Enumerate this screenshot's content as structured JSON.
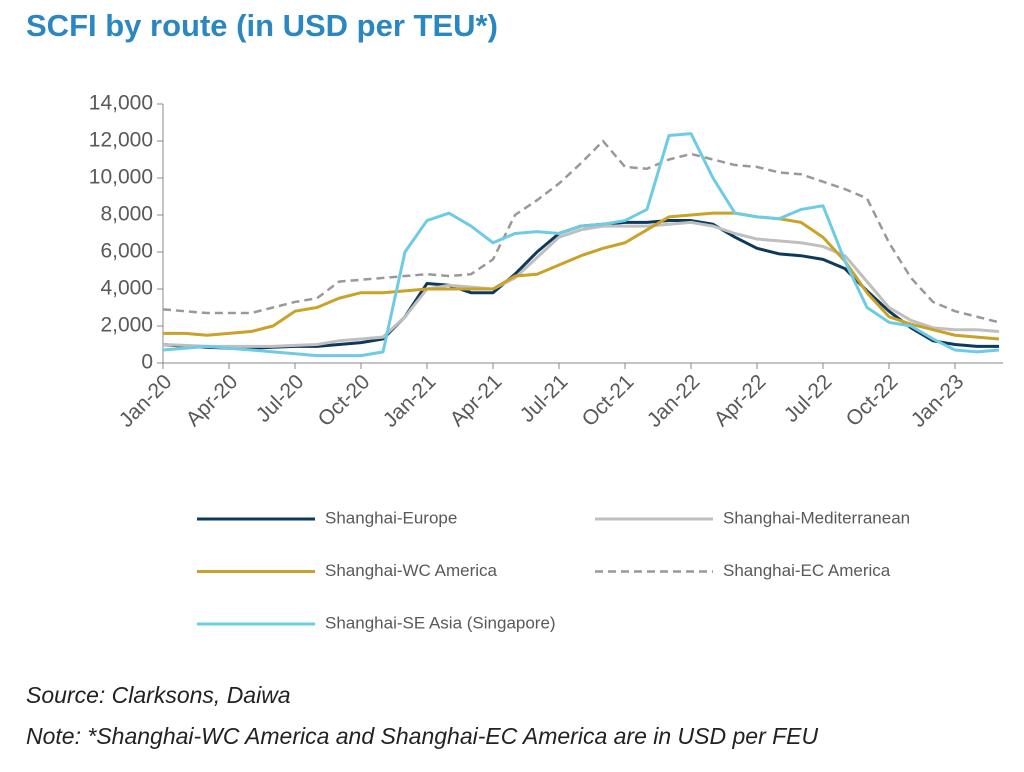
{
  "chart_data": {
    "type": "line",
    "title": "SCFI by route (in USD per TEU*)",
    "source": "Source: Clarksons, Daiwa",
    "note": "Note: *Shanghai-WC America and Shanghai-EC America are in USD per FEU",
    "categories": [
      "Jan-20",
      null,
      null,
      "Apr-20",
      null,
      null,
      "Jul-20",
      null,
      null,
      "Oct-20",
      null,
      null,
      "Jan-21",
      null,
      null,
      "Apr-21",
      null,
      null,
      "Jul-21",
      null,
      null,
      "Oct-21",
      null,
      null,
      "Jan-22",
      null,
      null,
      "Apr-22",
      null,
      null,
      "Jul-22",
      null,
      null,
      "Oct-22",
      null,
      null,
      "Jan-23",
      null,
      null
    ],
    "ylim": [
      0,
      14000
    ],
    "yticks": [
      0,
      {
        "value": 2000,
        "label": "2,000"
      },
      {
        "value": 4000,
        "label": "4,000"
      },
      {
        "value": 6000,
        "label": "6,000"
      },
      {
        "value": 8000,
        "label": "8,000"
      },
      {
        "value": 10000,
        "label": "10,000"
      },
      {
        "value": 12000,
        "label": "12,000"
      },
      {
        "value": 14000,
        "label": "14,000"
      }
    ],
    "series": [
      {
        "name": "Shanghai-Europe",
        "color": "#0d3a5c",
        "dash": false,
        "values": [
          1000,
          900,
          850,
          800,
          800,
          850,
          900,
          900,
          1000,
          1100,
          1300,
          2500,
          4300,
          4200,
          3800,
          3800,
          4800,
          6000,
          7000,
          7400,
          7500,
          7600,
          7600,
          7700,
          7700,
          7500,
          6800,
          6200,
          5900,
          5800,
          5600,
          5100,
          3900,
          2800,
          1900,
          1200,
          1000,
          900,
          900
        ]
      },
      {
        "name": "Shanghai-Mediterranean",
        "color": "#bfbfbf",
        "dash": false,
        "values": [
          1000,
          950,
          900,
          900,
          900,
          900,
          950,
          1000,
          1200,
          1300,
          1400,
          2500,
          4000,
          4200,
          4100,
          4000,
          4600,
          5700,
          6800,
          7200,
          7400,
          7400,
          7400,
          7500,
          7600,
          7400,
          7000,
          6700,
          6600,
          6500,
          6300,
          5800,
          4400,
          3000,
          2300,
          1900,
          1800,
          1800,
          1700
        ]
      },
      {
        "name": "Shanghai-WC America",
        "color": "#c9a227",
        "dash": false,
        "values": [
          1600,
          1600,
          1500,
          1600,
          1700,
          2000,
          2800,
          3000,
          3500,
          3800,
          3800,
          3900,
          4000,
          4000,
          4000,
          4000,
          4700,
          4800,
          5300,
          5800,
          6200,
          6500,
          7200,
          7900,
          8000,
          8100,
          8100,
          7900,
          7800,
          7600,
          6800,
          5500,
          3800,
          2500,
          2100,
          1800,
          1500,
          1400,
          1300
        ]
      },
      {
        "name": "Shanghai-EC America",
        "color": "#999999",
        "dash": true,
        "values": [
          2900,
          2800,
          2700,
          2700,
          2700,
          3000,
          3300,
          3500,
          4400,
          4500,
          4600,
          4700,
          4800,
          4700,
          4800,
          5600,
          8000,
          8800,
          9700,
          10800,
          12000,
          10600,
          10500,
          11000,
          11300,
          11000,
          10700,
          10600,
          10300,
          10200,
          9800,
          9400,
          8900,
          6500,
          4600,
          3300,
          2800,
          2500,
          2200
        ]
      },
      {
        "name": "Shanghai-SE Asia (Singapore)",
        "color": "#6ecbe6",
        "dash": false,
        "values": [
          700,
          800,
          900,
          800,
          700,
          600,
          500,
          400,
          400,
          400,
          600,
          6000,
          7700,
          8100,
          7400,
          6500,
          7000,
          7100,
          7000,
          7400,
          7500,
          7700,
          8300,
          12300,
          12400,
          10000,
          8100,
          7900,
          7800,
          8300,
          8500,
          5500,
          3000,
          2200,
          2000,
          1300,
          700,
          600,
          700
        ]
      }
    ]
  }
}
